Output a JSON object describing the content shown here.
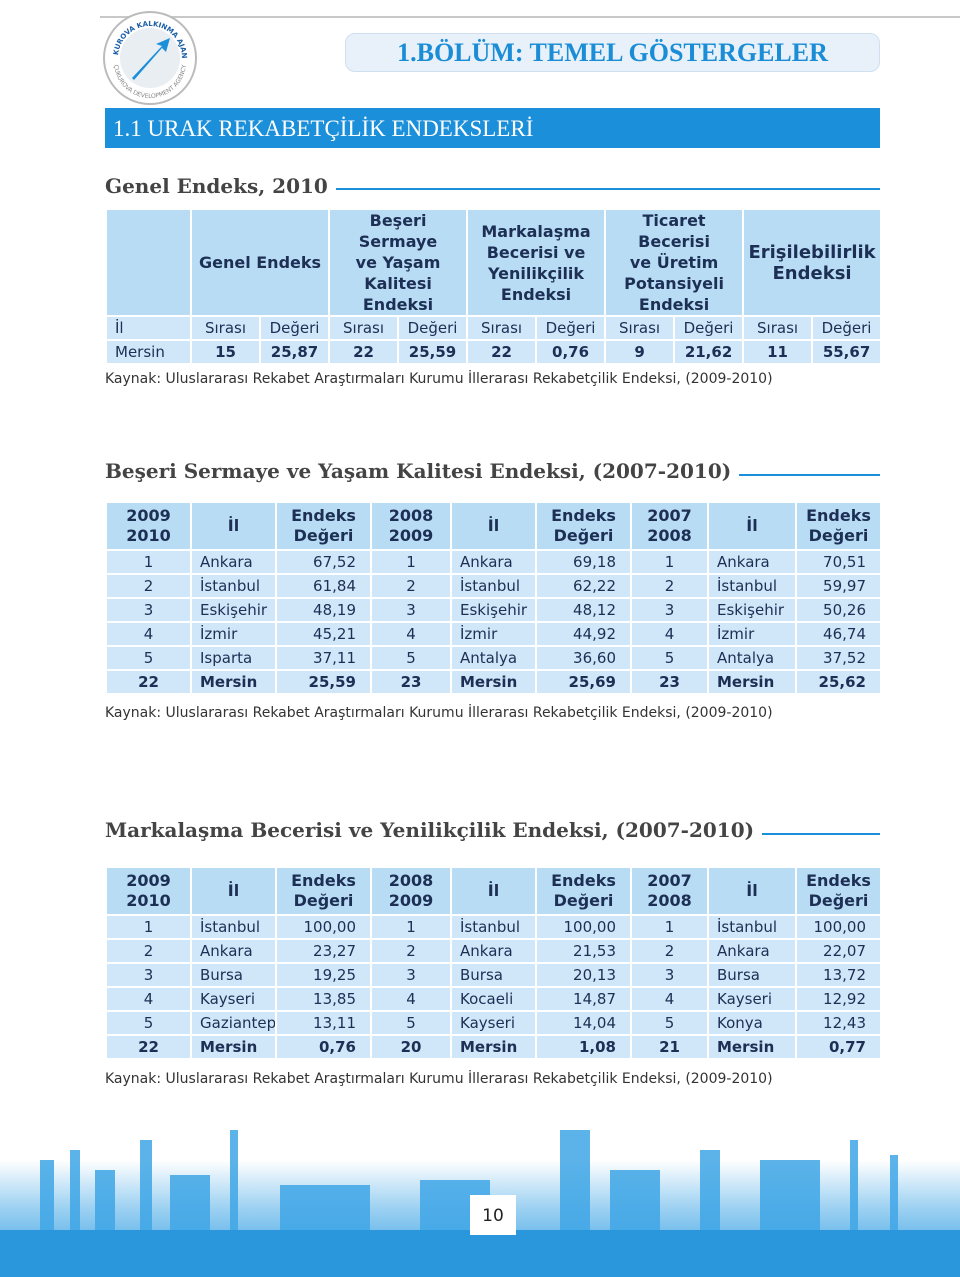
{
  "logo": {
    "top": "ÇUKUROVA KALKINMA AJANSI",
    "bottom": "ÇUKUROVA DEVELOPMENT AGENCY"
  },
  "header": {
    "title": "1.BÖLÜM: TEMEL GÖSTERGELER"
  },
  "section": {
    "title": "1.1 URAK REKABETÇİLİK ENDEKSLERİ"
  },
  "table1": {
    "title": "Genel Endeks, 2010",
    "groups": [
      "Genel Endeks",
      "Beşeri Sermaye\nve Yaşam\nKalitesi Endeksi",
      "Markalaşma\nBecerisi ve\nYenilikçilik\nEndeksi",
      "Ticaret Becerisi\nve Üretim\nPotansiyeli\nEndeksi",
      "Erişilebilirlik\nEndeksi"
    ],
    "subheader": [
      "İl",
      "Sırası",
      "Değeri",
      "Sırası",
      "Değeri",
      "Sırası",
      "Değeri",
      "Sırası",
      "Değeri",
      "Sırası",
      "Değeri"
    ],
    "rows": [
      [
        "Mersin",
        "15",
        "25,87",
        "22",
        "25,59",
        "22",
        "0,76",
        "9",
        "21,62",
        "11",
        "55,67"
      ]
    ],
    "source": "Kaynak: Uluslararası Rekabet Araştırmaları Kurumu İllerarası Rekabetçilik Endeksi, (2009-2010)"
  },
  "table2": {
    "title": "Beşeri Sermaye ve Yaşam Kalitesi Endeksi, (2007-2010)",
    "header": [
      "2009\n2010",
      "İl",
      "Endeks\nDeğeri",
      "2008\n2009",
      "İl",
      "Endeks\nDeğeri",
      "2007\n2008",
      "İl",
      "Endeks\nDeğeri"
    ],
    "rows": [
      [
        "1",
        "Ankara",
        "67,52",
        "1",
        "Ankara",
        "69,18",
        "1",
        "Ankara",
        "70,51"
      ],
      [
        "2",
        "İstanbul",
        "61,84",
        "2",
        "İstanbul",
        "62,22",
        "2",
        "İstanbul",
        "59,97"
      ],
      [
        "3",
        "Eskişehir",
        "48,19",
        "3",
        "Eskişehir",
        "48,12",
        "3",
        "Eskişehir",
        "50,26"
      ],
      [
        "4",
        "İzmir",
        "45,21",
        "4",
        "İzmir",
        "44,92",
        "4",
        "İzmir",
        "46,74"
      ],
      [
        "5",
        "Isparta",
        "37,11",
        "5",
        "Antalya",
        "36,60",
        "5",
        "Antalya",
        "37,52"
      ],
      [
        "22",
        "Mersin",
        "25,59",
        "23",
        "Mersin",
        "25,69",
        "23",
        "Mersin",
        "25,62"
      ]
    ],
    "source": "Kaynak: Uluslararası Rekabet Araştırmaları Kurumu İllerarası Rekabetçilik Endeksi, (2009-2010)"
  },
  "table3": {
    "title": "Markalaşma Becerisi ve Yenilikçilik Endeksi, (2007-2010)",
    "header": [
      "2009\n2010",
      "İl",
      "Endeks\nDeğeri",
      "2008\n2009",
      "İl",
      "Endeks\nDeğeri",
      "2007\n2008",
      "İl",
      "Endeks\nDeğeri"
    ],
    "rows": [
      [
        "1",
        "İstanbul",
        "100,00",
        "1",
        "İstanbul",
        "100,00",
        "1",
        "İstanbul",
        "100,00"
      ],
      [
        "2",
        "Ankara",
        "23,27",
        "2",
        "Ankara",
        "21,53",
        "2",
        "Ankara",
        "22,07"
      ],
      [
        "3",
        "Bursa",
        "19,25",
        "3",
        "Bursa",
        "20,13",
        "3",
        "Bursa",
        "13,72"
      ],
      [
        "4",
        "Kayseri",
        "13,85",
        "4",
        "Kocaeli",
        "14,87",
        "4",
        "Kayseri",
        "12,92"
      ],
      [
        "5",
        "Gaziantep",
        "13,11",
        "5",
        "Kayseri",
        "14,04",
        "5",
        "Konya",
        "12,43"
      ],
      [
        "22",
        "Mersin",
        "0,76",
        "20",
        "Mersin",
        "1,08",
        "21",
        "Mersin",
        "0,77"
      ]
    ],
    "source": "Kaynak: Uluslararası Rekabet Araştırmaları Kurumu İllerarası Rekabetçilik Endeksi, (2009-2010)"
  },
  "page_number": "10"
}
